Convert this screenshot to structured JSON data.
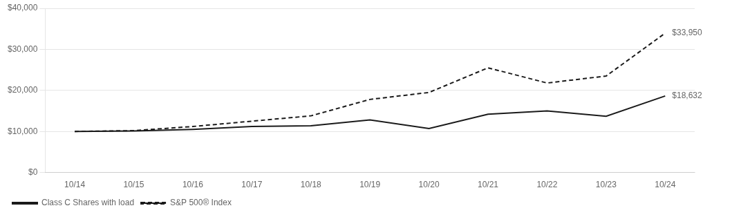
{
  "chart_data": {
    "type": "line",
    "categories": [
      "10/14",
      "10/15",
      "10/16",
      "10/17",
      "10/18",
      "10/19",
      "10/20",
      "10/21",
      "10/22",
      "10/23",
      "10/24"
    ],
    "series": [
      {
        "name": "Class C Shares with load",
        "color": "#1a1a1a",
        "line_style": "solid",
        "values": [
          10000,
          10100,
          10500,
          11200,
          11400,
          12800,
          10700,
          14200,
          15000,
          13700,
          18632
        ]
      },
      {
        "name": "S&P 500® Index",
        "color": "#1a1a1a",
        "line_style": "dashed",
        "values": [
          10000,
          10200,
          11200,
          12500,
          13800,
          17800,
          19500,
          25500,
          21800,
          23500,
          33950
        ]
      }
    ],
    "ylim": [
      0,
      40000
    ],
    "yticks": [
      {
        "value": 0,
        "label": "$0"
      },
      {
        "value": 10000,
        "label": "$10,000"
      },
      {
        "value": 20000,
        "label": "$20,000"
      },
      {
        "value": 30000,
        "label": "$30,000"
      },
      {
        "value": 40000,
        "label": "$40,000"
      }
    ],
    "grid": "y",
    "legend": "bottom left",
    "annotations": [
      {
        "text": "$33,950",
        "x": "10/24",
        "y": 33950
      },
      {
        "text": "$18,632",
        "x": "10/24",
        "y": 18632
      }
    ]
  }
}
